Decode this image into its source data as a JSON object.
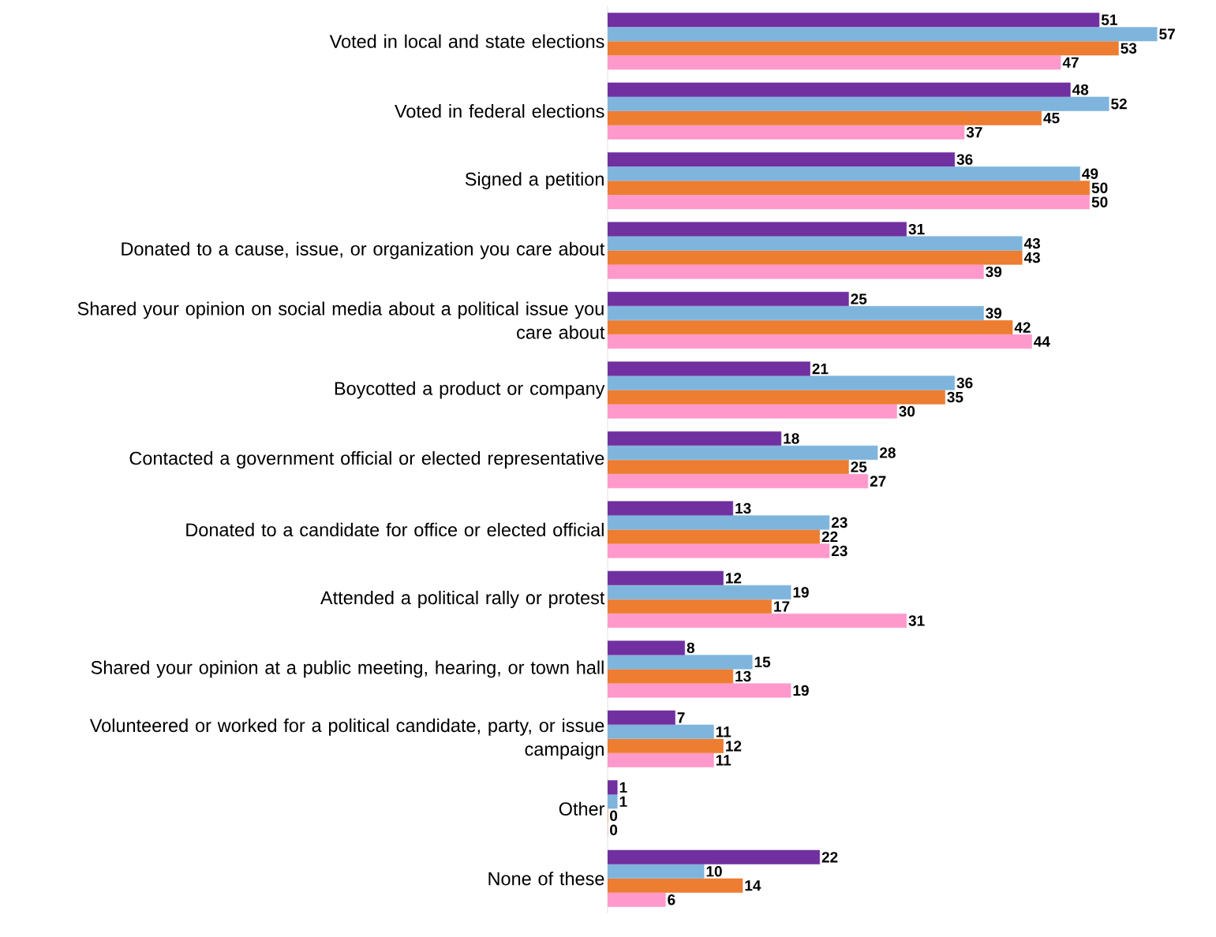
{
  "chart_data": {
    "type": "bar",
    "orientation": "horizontal",
    "data_labels": true,
    "categories": [
      "Voted in local and state elections",
      "Voted in federal elections",
      "Signed a petition",
      "Donated to a cause, issue, or organization you care about",
      "Shared your opinion on social media about a political issue you care about",
      "Boycotted a product or company",
      "Contacted a government official or elected representative",
      "Donated to a candidate for office or elected official",
      "Attended a political rally or protest",
      "Shared your opinion at a public meeting, hearing, or town hall",
      "Volunteered or worked for a political candidate, party, or issue campaign",
      "Other",
      "None of these"
    ],
    "series": [
      {
        "color": "#7030a0",
        "values": [
          51,
          48,
          36,
          31,
          25,
          21,
          18,
          13,
          12,
          8,
          7,
          1,
          22
        ]
      },
      {
        "color": "#7fb5dd",
        "values": [
          57,
          52,
          49,
          43,
          39,
          36,
          28,
          23,
          19,
          15,
          11,
          1,
          10
        ]
      },
      {
        "color": "#ed7d31",
        "values": [
          53,
          45,
          50,
          43,
          42,
          35,
          25,
          22,
          17,
          13,
          12,
          0,
          14
        ]
      },
      {
        "color": "#ff99cc",
        "values": [
          47,
          37,
          50,
          39,
          44,
          30,
          27,
          23,
          31,
          19,
          11,
          0,
          6
        ]
      }
    ]
  }
}
